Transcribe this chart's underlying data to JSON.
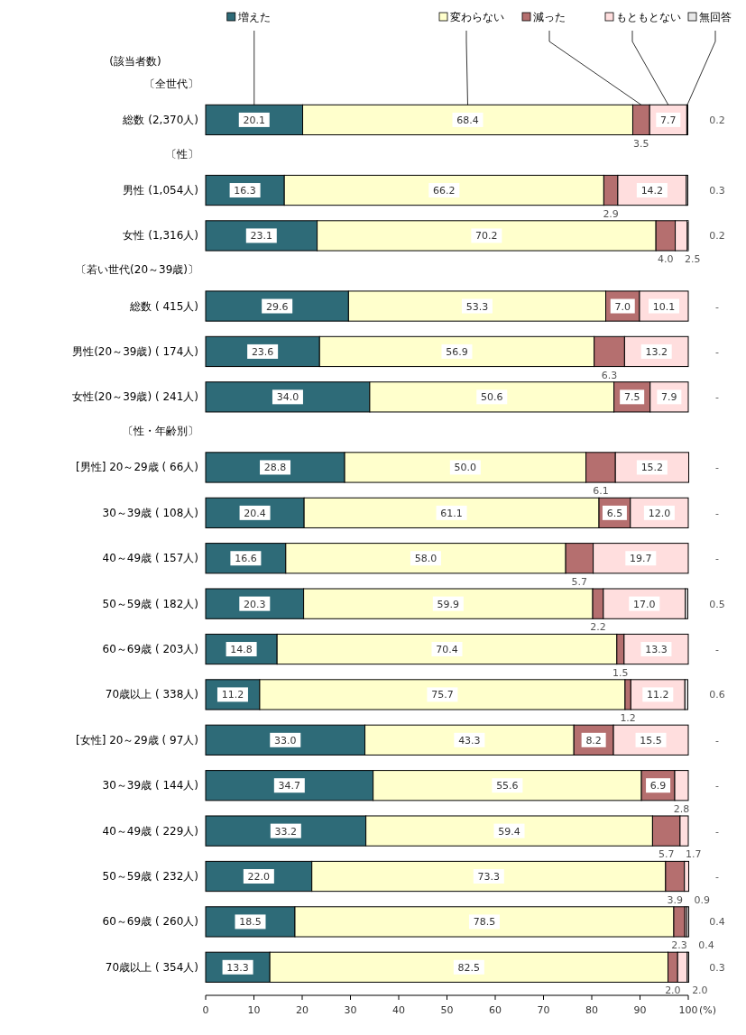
{
  "chart_data": {
    "type": "bar",
    "orientation": "horizontal",
    "stacked": true,
    "legend": "top",
    "xlabel": "(%)",
    "xlim": [
      0,
      100
    ],
    "xticks": [
      0,
      10,
      20,
      30,
      40,
      50,
      60,
      70,
      80,
      90,
      100
    ],
    "annotations": [
      "(該当者数)"
    ],
    "categories": [
      "〔全世代〕",
      "総数 (2,370人)",
      "〔性〕",
      "男性 (1,054人)",
      "女性 (1,316人)",
      "〔若い世代(20～39歳)〕",
      "総数 ( 415人)",
      "男性(20～39歳) ( 174人)",
      "女性(20～39歳) ( 241人)",
      "〔性・年齢別〕",
      "[男性] 20～29歳 ( 66人)",
      "30～39歳 ( 108人)",
      "40～49歳 ( 157人)",
      "50～59歳 ( 182人)",
      "60～69歳 ( 203人)",
      "70歳以上 ( 338人)",
      "[女性] 20～29歳 ( 97人)",
      "30～39歳 ( 144人)",
      "40～49歳 ( 229人)",
      "50～59歳 ( 232人)",
      "60～69歳 ( 260人)",
      "70歳以上 ( 354人)"
    ],
    "series": [
      {
        "name": "増えた",
        "color": "#2e6b78",
        "values": [
          null,
          20.1,
          null,
          16.3,
          23.1,
          null,
          29.6,
          23.6,
          34.0,
          null,
          28.8,
          20.4,
          16.6,
          20.3,
          14.8,
          11.2,
          33.0,
          34.7,
          33.2,
          22.0,
          18.5,
          13.3
        ],
        "value_labels": [
          null,
          "20.1",
          null,
          "16.3",
          "23.1",
          null,
          "29.6",
          "23.6",
          "34.0",
          null,
          "28.8",
          "20.4",
          "16.6",
          "20.3",
          "14.8",
          "11.2",
          "33.0",
          "34.7",
          "33.2",
          "22.0",
          "18.5",
          "13.3"
        ]
      },
      {
        "name": "変わらない",
        "color": "#ffffcc",
        "values": [
          null,
          68.4,
          null,
          66.2,
          70.2,
          null,
          53.3,
          56.9,
          50.6,
          null,
          50.0,
          61.1,
          58.0,
          59.9,
          70.4,
          75.7,
          43.3,
          55.6,
          59.4,
          73.3,
          78.5,
          82.5
        ],
        "value_labels": [
          null,
          "68.4",
          null,
          "66.2",
          "70.2",
          null,
          "53.3",
          "56.9",
          "50.6",
          null,
          "50.0",
          "61.1",
          "58.0",
          "59.9",
          "70.4",
          "75.7",
          "43.3",
          "55.6",
          "59.4",
          "73.3",
          "78.5",
          "82.5"
        ]
      },
      {
        "name": "減った",
        "color": "#b56f6f",
        "values": [
          null,
          3.5,
          null,
          2.9,
          4.0,
          null,
          7.0,
          6.3,
          7.5,
          null,
          6.1,
          6.5,
          5.7,
          2.2,
          1.5,
          1.2,
          8.2,
          6.9,
          5.7,
          3.9,
          2.3,
          2.0
        ],
        "value_labels": [
          null,
          "3.5",
          null,
          "2.9",
          "4.0",
          null,
          "7.0",
          "6.3",
          "7.5",
          null,
          "6.1",
          "6.5",
          "5.7",
          "2.2",
          "1.5",
          "1.2",
          "8.2",
          "6.9",
          "5.7",
          "3.9",
          "2.3",
          "2.0"
        ]
      },
      {
        "name": "もともとない",
        "color": "#ffdede",
        "values": [
          null,
          7.7,
          null,
          14.2,
          2.5,
          null,
          10.1,
          13.2,
          7.9,
          null,
          15.2,
          12.0,
          19.7,
          17.0,
          13.3,
          11.2,
          15.5,
          2.8,
          1.7,
          0.9,
          0.4,
          2.0
        ],
        "value_labels": [
          null,
          "7.7",
          null,
          "14.2",
          "2.5",
          null,
          "10.1",
          "13.2",
          "7.9",
          null,
          "15.2",
          "12.0",
          "19.7",
          "17.0",
          "13.3",
          "11.2",
          "15.5",
          "2.8",
          "1.7",
          "0.9",
          "0.4",
          "2.0"
        ]
      },
      {
        "name": "無回答",
        "color": "#e8e8e8",
        "values": [
          null,
          0.2,
          null,
          0.3,
          0.2,
          null,
          null,
          null,
          null,
          null,
          null,
          null,
          null,
          0.5,
          null,
          0.6,
          null,
          null,
          null,
          null,
          0.4,
          0.3
        ],
        "value_labels": [
          null,
          "0.2",
          null,
          "0.3",
          "0.2",
          null,
          "-",
          "-",
          "-",
          null,
          "-",
          "-",
          "-",
          "0.5",
          "-",
          "0.6",
          "-",
          "-",
          "-",
          "-",
          "0.4",
          "0.3"
        ]
      }
    ]
  }
}
